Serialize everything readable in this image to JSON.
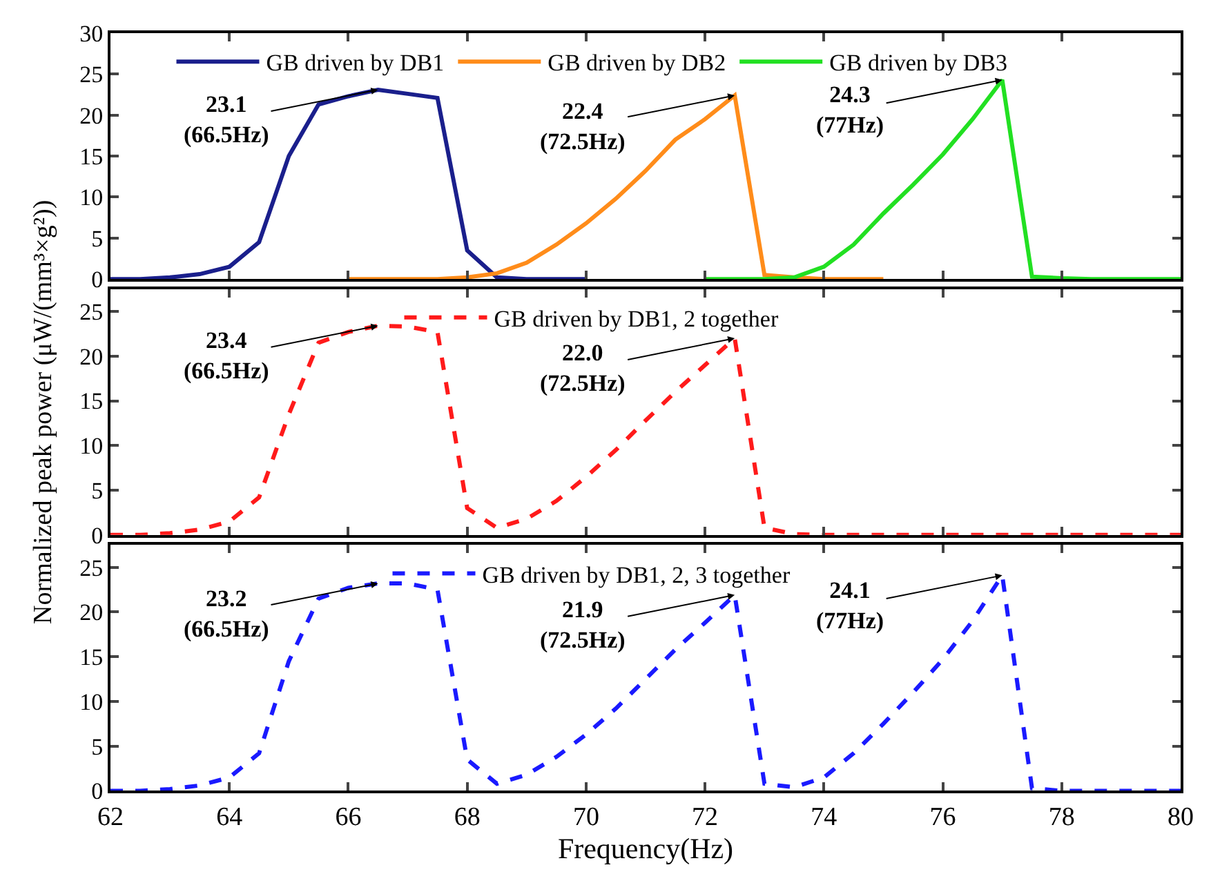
{
  "chart_data": [
    {
      "type": "line",
      "xlim": [
        62,
        80
      ],
      "xticks": [
        62,
        64,
        66,
        68,
        70,
        72,
        74,
        76,
        78,
        80
      ],
      "ylim": [
        0,
        30
      ],
      "yticks": [
        0,
        5,
        10,
        15,
        20,
        25,
        30
      ],
      "legend": "top",
      "tick_labels": "y",
      "line_style": "solid",
      "series": [
        {
          "name": "GB driven by DB1",
          "color": "#1a1f8c",
          "x": [
            62,
            62.5,
            63,
            63.5,
            64,
            64.5,
            65,
            65.5,
            66,
            66.5,
            67,
            67.5,
            68,
            68.5,
            69,
            69.5,
            70
          ],
          "values": [
            0,
            0,
            0.2,
            0.6,
            1.5,
            4.5,
            15,
            21.3,
            22.3,
            23.1,
            22.6,
            22.1,
            3.5,
            0.2,
            0,
            0,
            0
          ]
        },
        {
          "name": "GB driven by DB2",
          "color": "#ff8c1a",
          "x": [
            66,
            66.5,
            67,
            67.5,
            68,
            68.5,
            69,
            69.5,
            70,
            70.5,
            71,
            71.5,
            72,
            72.5,
            73,
            73.5,
            74,
            74.5,
            75
          ],
          "values": [
            0,
            0,
            0,
            0,
            0.2,
            0.7,
            2,
            4.2,
            6.8,
            9.8,
            13.2,
            17,
            19.5,
            22.4,
            0.5,
            0.2,
            0,
            0,
            0
          ]
        },
        {
          "name": "GB driven by DB3",
          "color": "#22e022",
          "x": [
            72,
            72.5,
            73,
            73.5,
            74,
            74.5,
            75,
            75.5,
            76,
            76.5,
            77,
            77.5,
            78,
            78.5,
            79,
            79.5,
            80
          ],
          "values": [
            0,
            0,
            0,
            0.2,
            1.5,
            4.2,
            8,
            11.5,
            15.2,
            19.5,
            24.3,
            0.3,
            0.1,
            0,
            0,
            0,
            0
          ]
        }
      ],
      "annotations": [
        {
          "text": "23.1\n(66.5Hz)",
          "x": 66.5,
          "y": 23.1
        },
        {
          "text": "22.4\n(72.5Hz)",
          "x": 72.5,
          "y": 22.4
        },
        {
          "text": "24.3\n(77Hz)",
          "x": 77,
          "y": 24.3
        }
      ]
    },
    {
      "type": "line",
      "xlim": [
        62,
        80
      ],
      "xticks": [
        62,
        64,
        66,
        68,
        70,
        72,
        74,
        76,
        78,
        80
      ],
      "ylim": [
        0,
        27.5
      ],
      "yticks": [
        0,
        5,
        10,
        15,
        20,
        25
      ],
      "legend": "top",
      "tick_labels": "y",
      "line_style": "dashed",
      "ylabel": "Normalized peak power (μW/(mm³×g²))",
      "series": [
        {
          "name": "GB driven by DB1, 2 together",
          "color": "#ff1a1a",
          "x": [
            62,
            62.5,
            63,
            63.5,
            64,
            64.5,
            65,
            65.5,
            66,
            66.5,
            67,
            67.5,
            68,
            68.5,
            69,
            69.5,
            70,
            70.5,
            71,
            71.5,
            72,
            72.5,
            73,
            73.5,
            74,
            74.5,
            75,
            75.5,
            76,
            76.5,
            77,
            77.5,
            78,
            78.5,
            79,
            79.5,
            80
          ],
          "values": [
            0,
            0,
            0.2,
            0.6,
            1.5,
            4.2,
            13.5,
            21.5,
            22.7,
            23.4,
            23.3,
            22.7,
            3,
            0.8,
            1.8,
            3.8,
            6.5,
            9.5,
            12.8,
            16,
            19,
            22.0,
            0.8,
            0.1,
            0,
            0,
            0,
            0,
            0,
            0,
            0,
            0,
            0,
            0,
            0,
            0,
            0
          ]
        }
      ],
      "annotations": [
        {
          "text": "23.4\n(66.5Hz)",
          "x": 66.5,
          "y": 23.4
        },
        {
          "text": "22.0\n(72.5Hz)",
          "x": 72.5,
          "y": 22.0
        }
      ]
    },
    {
      "type": "line",
      "xlim": [
        62,
        80
      ],
      "xticks": [
        62,
        64,
        66,
        68,
        70,
        72,
        74,
        76,
        78,
        80
      ],
      "ylim": [
        0,
        27.5
      ],
      "yticks": [
        0,
        5,
        10,
        15,
        20,
        25
      ],
      "legend": "top",
      "line_style": "dashed",
      "xlabel": "Frequency(Hz)",
      "series": [
        {
          "name": "GB driven by DB1, 2, 3 together",
          "color": "#1a1aff",
          "x": [
            62,
            62.5,
            63,
            63.5,
            64,
            64.5,
            65,
            65.5,
            66,
            66.5,
            67,
            67.5,
            68,
            68.5,
            69,
            69.5,
            70,
            70.5,
            71,
            71.5,
            72,
            72.5,
            73,
            73.5,
            74,
            74.5,
            75,
            75.5,
            76,
            76.5,
            77,
            77.5,
            78,
            78.5,
            79,
            79.5,
            80
          ],
          "values": [
            0,
            0,
            0.2,
            0.6,
            1.5,
            4.2,
            14.5,
            21.5,
            22.7,
            23.2,
            23.2,
            22.5,
            3.5,
            0.8,
            1.8,
            3.8,
            6.3,
            9.2,
            12.5,
            15.8,
            18.8,
            21.9,
            0.8,
            0.4,
            1.5,
            4.2,
            7.5,
            11,
            14.7,
            19,
            24.1,
            0.3,
            0,
            0,
            0,
            0,
            0
          ]
        }
      ],
      "annotations": [
        {
          "text": "23.2\n(66.5Hz)",
          "x": 66.5,
          "y": 23.2
        },
        {
          "text": "21.9\n(72.5Hz)",
          "x": 72.5,
          "y": 21.9
        },
        {
          "text": "24.1\n(77Hz)",
          "x": 77,
          "y": 24.1
        }
      ]
    }
  ]
}
